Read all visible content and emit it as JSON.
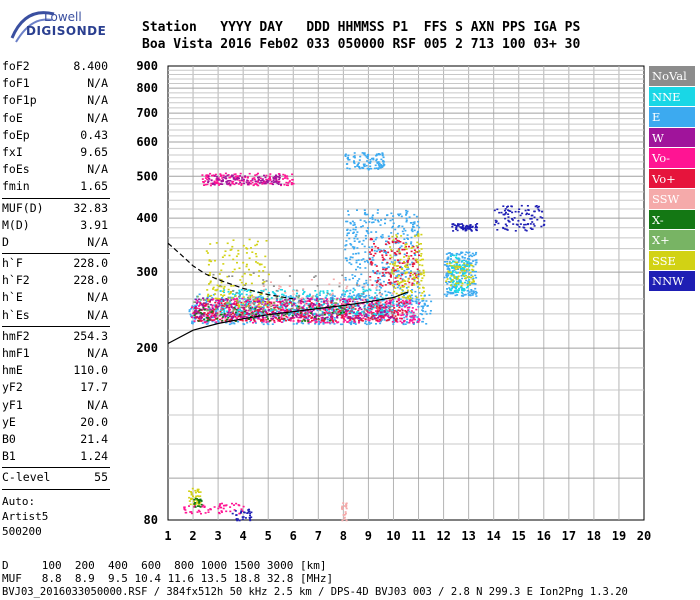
{
  "logo": {
    "line1": "Lowell",
    "line2": "DIGISONDE"
  },
  "header": {
    "line1": "Station   YYYY DAY   DDD HHMMSS P1  FFS S AXN PPS IGA PS",
    "line2": "Boa Vista 2016 Feb02 033 050000 RSF 005 2 713 100 03+ 30"
  },
  "params": {
    "group1": [
      {
        "k": "foF2",
        "v": "8.400"
      },
      {
        "k": "foF1",
        "v": "N/A"
      },
      {
        "k": "foF1p",
        "v": "N/A"
      },
      {
        "k": "foE",
        "v": "N/A"
      },
      {
        "k": "foEp",
        "v": "0.43"
      },
      {
        "k": "fxI",
        "v": "9.65"
      },
      {
        "k": "foEs",
        "v": "N/A"
      },
      {
        "k": "fmin",
        "v": "1.65"
      }
    ],
    "group2": [
      {
        "k": "MUF(D)",
        "v": "32.83"
      },
      {
        "k": "M(D)",
        "v": "3.91"
      },
      {
        "k": "D",
        "v": "N/A"
      }
    ],
    "group3": [
      {
        "k": "h`F",
        "v": "228.0"
      },
      {
        "k": "h`F2",
        "v": "228.0"
      },
      {
        "k": "h`E",
        "v": "N/A"
      },
      {
        "k": "h`Es",
        "v": "N/A"
      }
    ],
    "group4": [
      {
        "k": "hmF2",
        "v": "254.3"
      },
      {
        "k": "hmF1",
        "v": "N/A"
      },
      {
        "k": "hmE",
        "v": "110.0"
      },
      {
        "k": "yF2",
        "v": "17.7"
      },
      {
        "k": "yF1",
        "v": "N/A"
      },
      {
        "k": "yE",
        "v": "20.0"
      },
      {
        "k": "B0",
        "v": "21.4"
      },
      {
        "k": "B1",
        "v": "1.24"
      }
    ],
    "group5": [
      {
        "k": "C-level",
        "v": "55"
      }
    ],
    "auto": [
      "Auto:",
      "Artist5",
      "500200"
    ]
  },
  "legend": [
    {
      "label": "NoVal",
      "color": "#8c8c8c"
    },
    {
      "label": "NNE",
      "color": "#19d7e6"
    },
    {
      "label": "E",
      "color": "#3caaf0"
    },
    {
      "label": "W",
      "color": "#a0149b"
    },
    {
      "label": "Vo-",
      "color": "#ff1493"
    },
    {
      "label": "Vo+",
      "color": "#e6143c"
    },
    {
      "label": "SSW",
      "color": "#f5aaaa"
    },
    {
      "label": "X-",
      "color": "#147814"
    },
    {
      "label": "X+",
      "color": "#78b464"
    },
    {
      "label": "SSE",
      "color": "#d2d214"
    },
    {
      "label": "NNW",
      "color": "#1e1eb4"
    }
  ],
  "footer": {
    "dist_line": "D     100  200  400  600  800 1000 1500 3000 [km]",
    "muf_line": "MUF   8.8  8.9  9.5 10.4 11.6 13.5 18.8 32.8 [MHz]",
    "file_line": "BVJ03_2016033050000.RSF / 384fx512h 50 kHz 2.5 km / DPS-4D BVJ03 003 / 2.8 N 299.3 E Ion2Png 1.3.20"
  },
  "chart_data": {
    "type": "scatter",
    "title": "",
    "xlabel": "",
    "ylabel": "",
    "x_ticks": [
      "1",
      "2",
      "3",
      "4",
      "5",
      "6",
      "7",
      "8",
      "9",
      "10",
      "11",
      "12",
      "13",
      "14",
      "15",
      "16",
      "17",
      "18",
      "19",
      "20"
    ],
    "y_ticks": [
      "80",
      "200",
      "300",
      "400",
      "500",
      "600",
      "700",
      "800",
      "900"
    ],
    "xlim": [
      1,
      20
    ],
    "ylim": [
      80,
      900
    ],
    "y_scale": "log",
    "grid": true,
    "legend_position": "right",
    "series": [
      {
        "name": "E",
        "color": "#3caaf0",
        "clusters": [
          {
            "fmin": 1.8,
            "fmax": 11.5,
            "hmin": 228,
            "hmax": 268,
            "weight": 60
          },
          {
            "fmin": 8.0,
            "fmax": 11.0,
            "hmin": 250,
            "hmax": 420,
            "weight": 40
          },
          {
            "fmin": 12.0,
            "fmax": 13.3,
            "hmin": 265,
            "hmax": 335,
            "weight": 20
          },
          {
            "fmin": 8.0,
            "fmax": 9.6,
            "hmin": 520,
            "hmax": 570,
            "weight": 10
          }
        ]
      },
      {
        "name": "Vo-",
        "color": "#ff1493",
        "clusters": [
          {
            "fmin": 1.9,
            "fmax": 11.0,
            "hmin": 230,
            "hmax": 262,
            "weight": 50
          },
          {
            "fmin": 2.3,
            "fmax": 6.0,
            "hmin": 478,
            "hmax": 510,
            "weight": 16
          },
          {
            "fmin": 1.6,
            "fmax": 4.0,
            "hmin": 83,
            "hmax": 88,
            "weight": 6
          }
        ]
      },
      {
        "name": "Vo+",
        "color": "#e6143c",
        "clusters": [
          {
            "fmin": 2.0,
            "fmax": 10.5,
            "hmin": 232,
            "hmax": 258,
            "weight": 40
          },
          {
            "fmin": 9.0,
            "fmax": 11.0,
            "hmin": 280,
            "hmax": 360,
            "weight": 14
          }
        ]
      },
      {
        "name": "W",
        "color": "#a0149b",
        "clusters": [
          {
            "fmin": 2.0,
            "fmax": 10.0,
            "hmin": 235,
            "hmax": 262,
            "weight": 30
          },
          {
            "fmin": 2.5,
            "fmax": 5.5,
            "hmin": 480,
            "hmax": 505,
            "weight": 10
          }
        ]
      },
      {
        "name": "NNE",
        "color": "#19d7e6",
        "clusters": [
          {
            "fmin": 3.0,
            "fmax": 10.0,
            "hmin": 240,
            "hmax": 275,
            "weight": 25
          },
          {
            "fmin": 12.2,
            "fmax": 13.0,
            "hmin": 270,
            "hmax": 330,
            "weight": 10
          }
        ]
      },
      {
        "name": "SSE",
        "color": "#d2d214",
        "clusters": [
          {
            "fmin": 2.5,
            "fmax": 5.0,
            "hmin": 250,
            "hmax": 360,
            "weight": 14
          },
          {
            "fmin": 9.8,
            "fmax": 11.2,
            "hmin": 260,
            "hmax": 370,
            "weight": 14
          },
          {
            "fmin": 1.8,
            "fmax": 2.3,
            "hmin": 87,
            "hmax": 95,
            "weight": 4
          },
          {
            "fmin": 12.0,
            "fmax": 13.2,
            "hmin": 280,
            "hmax": 320,
            "weight": 6
          }
        ]
      },
      {
        "name": "NNW",
        "color": "#1e1eb4",
        "clusters": [
          {
            "fmin": 12.3,
            "fmax": 13.3,
            "hmin": 375,
            "hmax": 390,
            "weight": 6
          },
          {
            "fmin": 14.0,
            "fmax": 16.0,
            "hmin": 375,
            "hmax": 430,
            "weight": 10
          },
          {
            "fmin": 3.5,
            "fmax": 4.3,
            "hmin": 80,
            "hmax": 85,
            "weight": 3
          }
        ]
      },
      {
        "name": "X-",
        "color": "#147814",
        "clusters": [
          {
            "fmin": 2.0,
            "fmax": 8.0,
            "hmin": 232,
            "hmax": 252,
            "weight": 8
          },
          {
            "fmin": 2.0,
            "fmax": 2.4,
            "hmin": 86,
            "hmax": 90,
            "weight": 2
          }
        ]
      },
      {
        "name": "X+",
        "color": "#78b464",
        "clusters": [
          {
            "fmin": 2.0,
            "fmax": 8.5,
            "hmin": 238,
            "hmax": 265,
            "weight": 6
          }
        ]
      },
      {
        "name": "SSW",
        "color": "#f5aaaa",
        "clusters": [
          {
            "fmin": 4.0,
            "fmax": 10.0,
            "hmin": 250,
            "hmax": 290,
            "weight": 6
          },
          {
            "fmin": 7.9,
            "fmax": 8.1,
            "hmin": 80,
            "hmax": 88,
            "weight": 2
          }
        ]
      },
      {
        "name": "NoVal",
        "color": "#8c8c8c",
        "clusters": [
          {
            "fmin": 2.5,
            "fmax": 10.0,
            "hmin": 240,
            "hmax": 300,
            "weight": 6
          }
        ]
      }
    ],
    "profile_curve": {
      "style": "solid",
      "points": [
        [
          1,
          205
        ],
        [
          2,
          220
        ],
        [
          3,
          228
        ],
        [
          4,
          234
        ],
        [
          5,
          239
        ],
        [
          6,
          243
        ],
        [
          7,
          247
        ],
        [
          8,
          251
        ],
        [
          9,
          256
        ],
        [
          10,
          262
        ],
        [
          10.6,
          270
        ]
      ]
    },
    "dashed_curve": {
      "style": "dashed",
      "points": [
        [
          1,
          350
        ],
        [
          1.5,
          330
        ],
        [
          2,
          310
        ],
        [
          2.5,
          297
        ],
        [
          3,
          288
        ],
        [
          4,
          275
        ],
        [
          5,
          266
        ],
        [
          6,
          260
        ]
      ]
    }
  }
}
